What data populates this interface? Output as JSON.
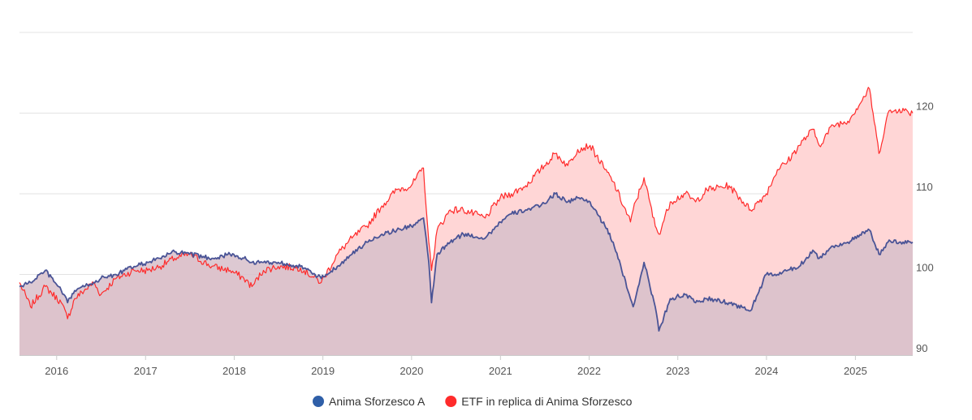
{
  "chart_data": {
    "type": "area",
    "title": "",
    "xlabel": "",
    "ylabel": "",
    "ylim": [
      90,
      130
    ],
    "xlim": [
      "2015-08-01",
      "2025-08-25"
    ],
    "y_axis_side": "right",
    "grid": "horizontal",
    "legend_position": "bottom-center",
    "x_ticks": [
      "2016",
      "2017",
      "2018",
      "2019",
      "2020",
      "2021",
      "2022",
      "2023",
      "2024",
      "2025"
    ],
    "y_ticks": [
      90,
      100,
      110,
      120
    ],
    "series": [
      {
        "name": "ETF in replica di Anima Sforzesco",
        "color": "#ff2b2b",
        "fill": "#ffd6d6",
        "x": [
          "2015-08-01",
          "2015-09-15",
          "2015-11-15",
          "2016-01-20",
          "2016-02-15",
          "2016-03-15",
          "2016-06-01",
          "2016-07-01",
          "2016-09-01",
          "2016-11-15",
          "2017-01-10",
          "2017-03-01",
          "2017-05-01",
          "2017-07-01",
          "2017-10-01",
          "2017-12-15",
          "2018-02-10",
          "2018-03-15",
          "2018-05-01",
          "2018-07-01",
          "2018-10-01",
          "2018-12-25",
          "2019-03-01",
          "2019-05-01",
          "2019-07-01",
          "2019-09-01",
          "2019-11-01",
          "2019-12-31",
          "2020-02-19",
          "2020-03-12",
          "2020-03-23",
          "2020-04-15",
          "2020-06-08",
          "2020-08-01",
          "2020-10-30",
          "2020-12-31",
          "2021-02-15",
          "2021-04-15",
          "2021-06-15",
          "2021-08-15",
          "2021-10-05",
          "2021-11-15",
          "2022-01-05",
          "2022-03-07",
          "2022-04-10",
          "2022-06-20",
          "2022-07-01",
          "2022-08-15",
          "2022-09-30",
          "2022-10-15",
          "2022-12-01",
          "2023-02-01",
          "2023-03-15",
          "2023-05-01",
          "2023-07-31",
          "2023-10-27",
          "2023-12-31",
          "2024-02-15",
          "2024-03-28",
          "2024-05-15",
          "2024-07-10",
          "2024-08-05",
          "2024-10-01",
          "2024-12-01",
          "2025-02-28",
          "2025-04-08",
          "2025-05-15",
          "2025-07-01",
          "2025-08-25"
        ],
        "values": [
          99.0,
          96.0,
          98.5,
          96.5,
          94.5,
          97.0,
          99.0,
          97.5,
          99.5,
          100.5,
          100.5,
          101.0,
          102.0,
          102.5,
          101.0,
          100.5,
          99.5,
          98.5,
          100.5,
          101.0,
          100.8,
          99.0,
          102.5,
          104.5,
          106.0,
          108.5,
          110.5,
          111.0,
          113.2,
          104.0,
          100.5,
          105.5,
          108.0,
          108.0,
          107.0,
          109.5,
          110.0,
          111.0,
          113.0,
          115.0,
          113.5,
          115.5,
          116.0,
          113.0,
          111.5,
          106.5,
          108.0,
          112.0,
          106.0,
          105.0,
          109.0,
          110.0,
          109.0,
          110.5,
          111.0,
          108.0,
          110.0,
          113.0,
          114.0,
          116.0,
          118.0,
          116.0,
          118.5,
          119.0,
          123.0,
          115.0,
          120.0,
          120.5,
          120.0
        ]
      },
      {
        "name": "Anima Sforzesco A",
        "color": "#4a5496",
        "fill": "#d7c0ca",
        "x": [
          "2015-08-01",
          "2015-09-15",
          "2015-11-15",
          "2016-01-20",
          "2016-02-15",
          "2016-03-15",
          "2016-06-01",
          "2016-07-01",
          "2016-09-01",
          "2016-11-15",
          "2017-01-10",
          "2017-03-01",
          "2017-05-01",
          "2017-07-01",
          "2017-10-01",
          "2017-12-15",
          "2018-02-10",
          "2018-03-15",
          "2018-05-01",
          "2018-07-01",
          "2018-10-01",
          "2018-12-25",
          "2019-03-01",
          "2019-05-01",
          "2019-07-01",
          "2019-09-01",
          "2019-11-01",
          "2019-12-31",
          "2020-02-19",
          "2020-03-12",
          "2020-03-23",
          "2020-04-15",
          "2020-06-08",
          "2020-08-01",
          "2020-10-30",
          "2020-12-31",
          "2021-02-15",
          "2021-04-15",
          "2021-06-15",
          "2021-08-15",
          "2021-10-05",
          "2021-11-15",
          "2022-01-05",
          "2022-03-07",
          "2022-04-10",
          "2022-06-20",
          "2022-07-01",
          "2022-08-15",
          "2022-09-30",
          "2022-10-15",
          "2022-12-01",
          "2023-02-01",
          "2023-03-15",
          "2023-05-01",
          "2023-07-31",
          "2023-10-27",
          "2023-12-31",
          "2024-02-15",
          "2024-03-28",
          "2024-05-15",
          "2024-07-10",
          "2024-08-05",
          "2024-10-01",
          "2024-12-01",
          "2025-02-28",
          "2025-04-08",
          "2025-05-15",
          "2025-07-01",
          "2025-08-25"
        ],
        "values": [
          98.5,
          99.0,
          100.5,
          98.0,
          96.5,
          98.0,
          99.0,
          99.5,
          100.0,
          101.0,
          101.5,
          102.0,
          102.8,
          102.5,
          102.0,
          102.5,
          102.0,
          101.5,
          101.5,
          101.5,
          101.0,
          99.5,
          101.0,
          102.5,
          104.0,
          105.0,
          105.5,
          106.0,
          107.0,
          101.5,
          96.5,
          102.5,
          104.0,
          105.0,
          104.5,
          106.5,
          107.5,
          108.0,
          108.5,
          110.0,
          109.0,
          109.5,
          109.0,
          106.0,
          104.0,
          97.0,
          96.0,
          101.5,
          96.0,
          93.0,
          97.0,
          97.5,
          96.5,
          97.0,
          96.5,
          95.5,
          100.0,
          100.0,
          100.5,
          101.0,
          103.0,
          102.0,
          103.5,
          104.0,
          105.5,
          102.5,
          104.0,
          104.0,
          104.0
        ]
      }
    ]
  }
}
